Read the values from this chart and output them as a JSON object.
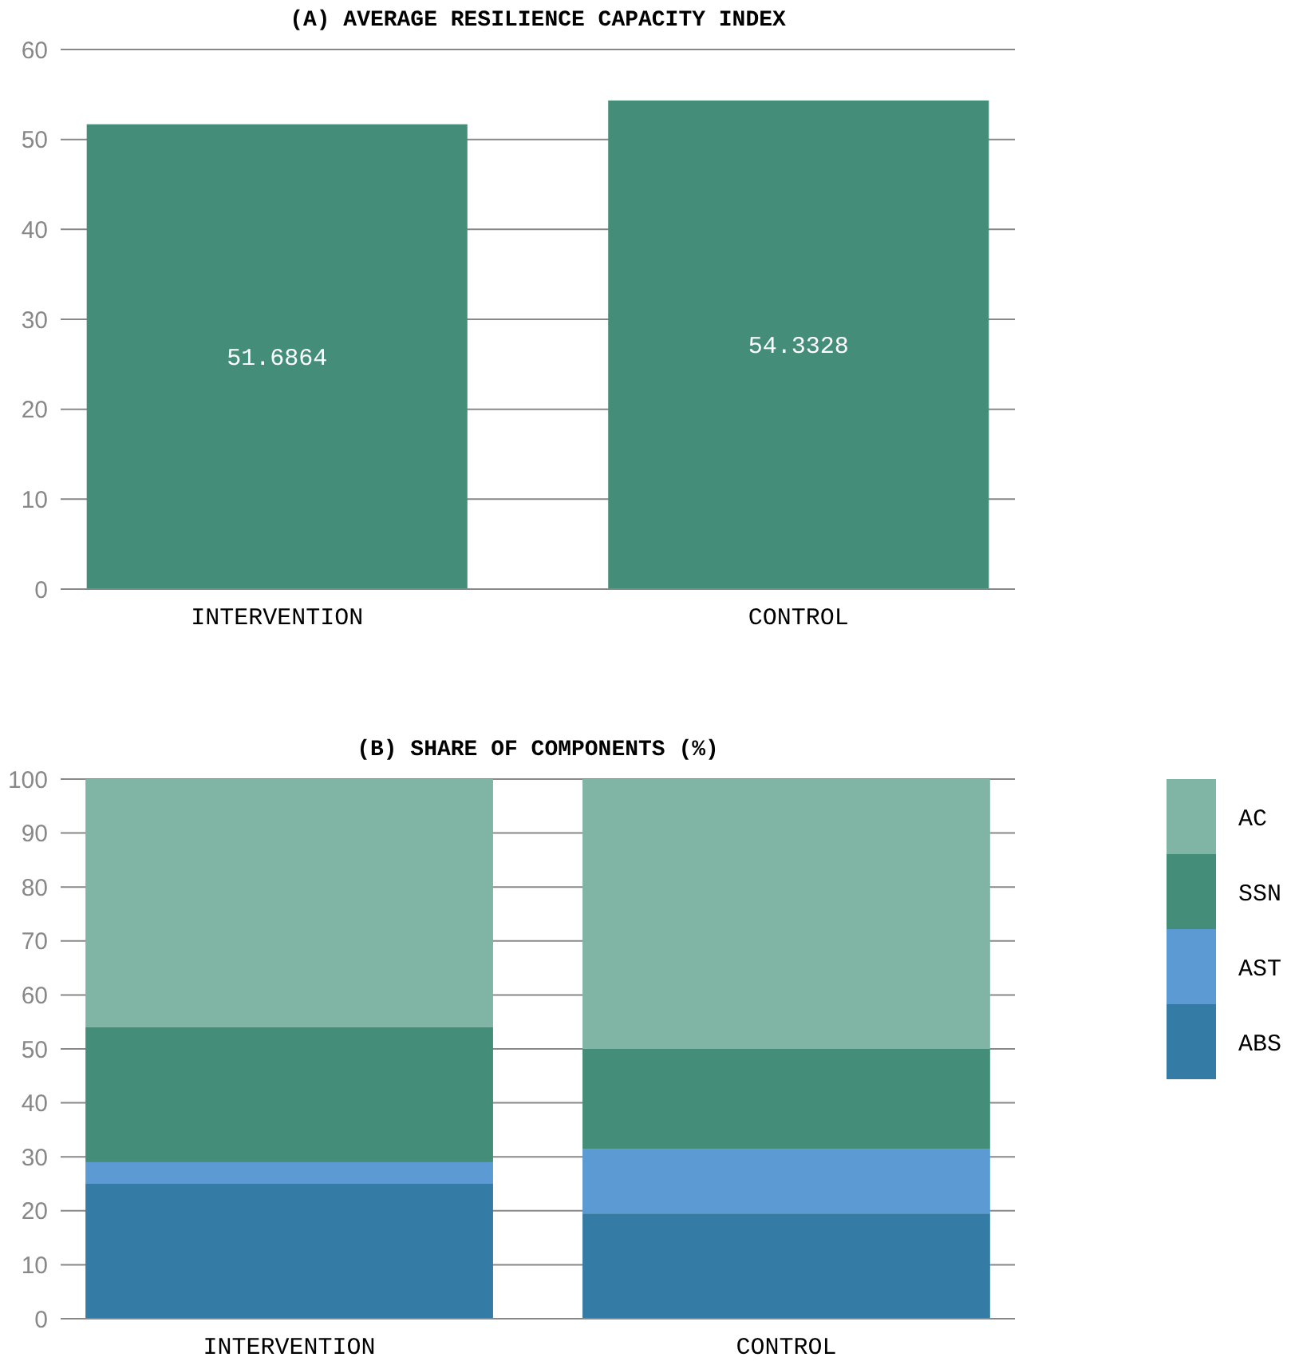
{
  "chart_data": [
    {
      "type": "bar",
      "title": "(A) AVERAGE RESILIENCE CAPACITY INDEX",
      "categories": [
        "INTERVENTION",
        "CONTROL"
      ],
      "values": [
        51.6864,
        54.3328
      ],
      "color": "#448e79",
      "data_labels": true,
      "ylim": [
        0,
        60
      ],
      "yticks": [
        0,
        10,
        20,
        30,
        40,
        50,
        60
      ],
      "grid": "y"
    },
    {
      "type": "bar",
      "title": "(B) SHARE OF COMPONENTS (%)",
      "categories": [
        "INTERVENTION",
        "CONTROL"
      ],
      "stacked": true,
      "series": [
        {
          "name": "ABS",
          "color": "#347ca5",
          "values": [
            25,
            19.5
          ]
        },
        {
          "name": "AST",
          "color": "#5b9ad2",
          "values": [
            4,
            12
          ]
        },
        {
          "name": "SSN",
          "color": "#448e79",
          "values": [
            25,
            18.5
          ]
        },
        {
          "name": "AC",
          "color": "#80b4a4",
          "values": [
            46,
            50
          ]
        }
      ],
      "ylim": [
        0,
        100
      ],
      "yticks": [
        0,
        10,
        20,
        30,
        40,
        50,
        60,
        70,
        80,
        90,
        100
      ],
      "grid": "y",
      "legend": "right"
    }
  ]
}
